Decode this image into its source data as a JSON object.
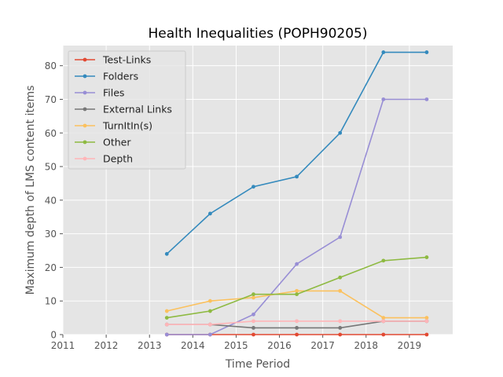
{
  "chart_data": {
    "type": "line",
    "title": "Health Inequalities (POPH90205)",
    "xlabel": "Time Period",
    "ylabel": "Maximum depth of LMS content items",
    "xlim": [
      2011,
      2020
    ],
    "ylim": [
      0,
      86
    ],
    "xticks": [
      2011,
      2012,
      2013,
      2014,
      2015,
      2016,
      2017,
      2018,
      2019
    ],
    "yticks": [
      0,
      10,
      20,
      30,
      40,
      50,
      60,
      70,
      80
    ],
    "grid": true,
    "legend_position": "upper-left",
    "x": [
      2013.4,
      2014.4,
      2015.4,
      2016.4,
      2017.4,
      2018.4,
      2019.4
    ],
    "series": [
      {
        "name": "Test-Links",
        "color": "#E24A33",
        "values": [
          0,
          0,
          0,
          0,
          0,
          0,
          0
        ]
      },
      {
        "name": "Folders",
        "color": "#348ABD",
        "values": [
          24,
          36,
          44,
          47,
          60,
          84,
          84
        ]
      },
      {
        "name": "Files",
        "color": "#988ED5",
        "values": [
          0,
          0,
          6,
          21,
          29,
          70,
          70
        ]
      },
      {
        "name": "External Links",
        "color": "#777777",
        "values": [
          3,
          3,
          2,
          2,
          2,
          4,
          4
        ]
      },
      {
        "name": "TurnItIn(s)",
        "color": "#FBC15E",
        "values": [
          7,
          10,
          11,
          13,
          13,
          5,
          5
        ]
      },
      {
        "name": "Other",
        "color": "#8EBA42",
        "values": [
          5,
          7,
          12,
          12,
          17,
          22,
          23
        ]
      },
      {
        "name": "Depth",
        "color": "#FFB5B8",
        "values": [
          3,
          3,
          4,
          4,
          4,
          4,
          4
        ]
      }
    ]
  }
}
